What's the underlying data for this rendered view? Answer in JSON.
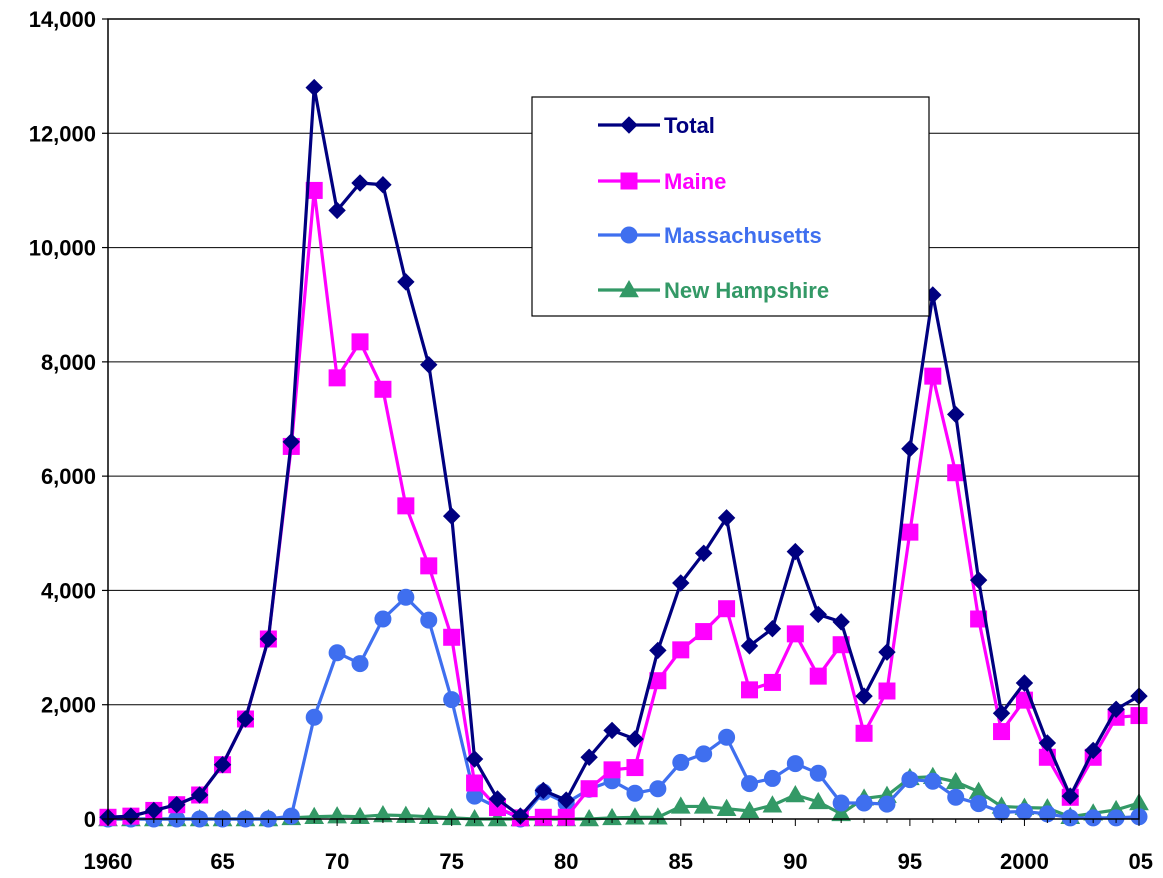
{
  "chart_data": {
    "type": "line",
    "title": "",
    "xlabel": "",
    "ylabel": "",
    "xlim": [
      1960,
      2005
    ],
    "ylim": [
      0,
      14000
    ],
    "grid": "horizontal",
    "legend_position": "top-center",
    "x_ticks": [
      {
        "value": 1960,
        "label": "1960"
      },
      {
        "value": 1965,
        "label": "65"
      },
      {
        "value": 1970,
        "label": "70"
      },
      {
        "value": 1975,
        "label": "75"
      },
      {
        "value": 1980,
        "label": "80"
      },
      {
        "value": 1985,
        "label": "85"
      },
      {
        "value": 1990,
        "label": "90"
      },
      {
        "value": 1995,
        "label": "95"
      },
      {
        "value": 2000,
        "label": "2000"
      },
      {
        "value": 2005,
        "label": "05"
      }
    ],
    "y_ticks": [
      {
        "value": 0,
        "label": "0"
      },
      {
        "value": 2000,
        "label": "2,000"
      },
      {
        "value": 4000,
        "label": "4,000"
      },
      {
        "value": 6000,
        "label": "6,000"
      },
      {
        "value": 8000,
        "label": "8,000"
      },
      {
        "value": 10000,
        "label": "10,000"
      },
      {
        "value": 12000,
        "label": "12,000"
      },
      {
        "value": 14000,
        "label": "14,000"
      }
    ],
    "x": [
      1960,
      1961,
      1962,
      1963,
      1964,
      1965,
      1966,
      1967,
      1968,
      1969,
      1970,
      1971,
      1972,
      1973,
      1974,
      1975,
      1976,
      1977,
      1978,
      1979,
      1980,
      1981,
      1982,
      1983,
      1984,
      1985,
      1986,
      1987,
      1988,
      1989,
      1990,
      1991,
      1992,
      1993,
      1994,
      1995,
      1996,
      1997,
      1998,
      1999,
      2000,
      2001,
      2002,
      2003,
      2004,
      2005
    ],
    "series": [
      {
        "name": "Total",
        "color": "#000080",
        "marker": "diamond",
        "values": [
          30,
          50,
          150,
          250,
          420,
          950,
          1750,
          3150,
          6600,
          12800,
          10650,
          11130,
          11100,
          9400,
          7950,
          5300,
          1050,
          350,
          50,
          500,
          330,
          1080,
          1550,
          1400,
          2950,
          4130,
          4650,
          5270,
          3030,
          3330,
          4680,
          3580,
          3450,
          2150,
          2920,
          6480,
          9170,
          7080,
          4180,
          1850,
          2380,
          1330,
          400,
          1200,
          1920,
          2150
        ]
      },
      {
        "name": "Maine",
        "color": "#ff00ff",
        "marker": "square",
        "values": [
          30,
          50,
          150,
          250,
          420,
          950,
          1750,
          3150,
          6520,
          11000,
          7720,
          8350,
          7520,
          5480,
          4430,
          3180,
          630,
          200,
          20,
          30,
          30,
          530,
          860,
          900,
          2420,
          2960,
          3280,
          3680,
          2260,
          2390,
          3240,
          2500,
          3050,
          1500,
          2240,
          5020,
          7750,
          6060,
          3500,
          1530,
          2080,
          1080,
          380,
          1080,
          1780,
          1810
        ]
      },
      {
        "name": "Massachusetts",
        "color": "#3f6fef",
        "marker": "circle",
        "values": [
          0,
          0,
          0,
          0,
          0,
          0,
          0,
          0,
          50,
          1780,
          2910,
          2720,
          3500,
          3880,
          3480,
          2090,
          400,
          200,
          0,
          470,
          280,
          520,
          670,
          450,
          530,
          990,
          1140,
          1430,
          620,
          710,
          970,
          800,
          280,
          280,
          260,
          690,
          660,
          380,
          270,
          120,
          130,
          90,
          20,
          20,
          20,
          40
        ]
      },
      {
        "name": "New Hampshire",
        "color": "#339966",
        "marker": "triangle",
        "values": [
          0,
          0,
          0,
          0,
          0,
          0,
          0,
          0,
          20,
          40,
          50,
          40,
          70,
          60,
          40,
          20,
          0,
          0,
          0,
          0,
          0,
          0,
          20,
          30,
          30,
          220,
          220,
          180,
          140,
          240,
          420,
          300,
          90,
          360,
          410,
          720,
          740,
          650,
          480,
          220,
          200,
          190,
          40,
          100,
          160,
          280
        ]
      }
    ]
  }
}
